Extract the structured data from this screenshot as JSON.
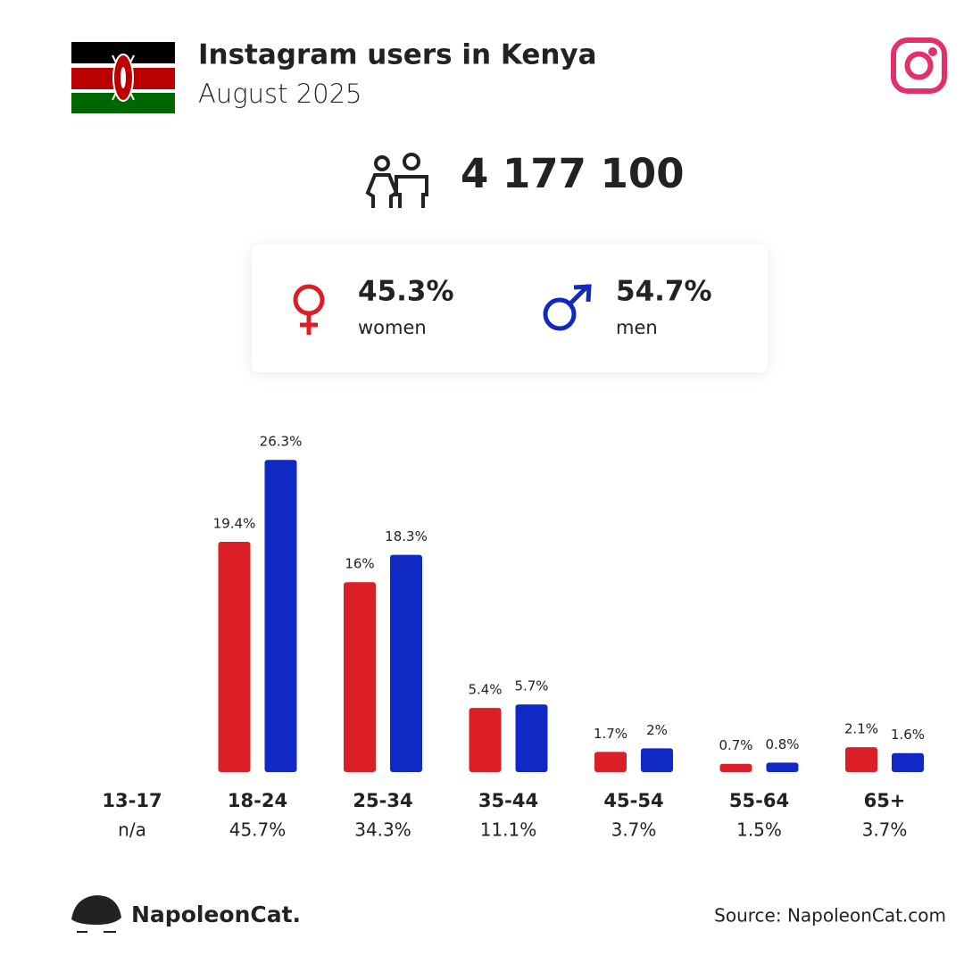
{
  "header": {
    "title": "Instagram users in Kenya",
    "subtitle": "August 2025"
  },
  "total": {
    "value": 4177100,
    "label": "4 177 100"
  },
  "gender": {
    "women": {
      "value": 45.3,
      "value_label": "45.3%",
      "name": "women",
      "color": "#dc1f26"
    },
    "men": {
      "value": 54.7,
      "value_label": "54.7%",
      "name": "men",
      "color": "#1029c4"
    }
  },
  "chart_data": {
    "type": "bar",
    "categories": [
      "13-17",
      "18-24",
      "25-34",
      "35-44",
      "45-54",
      "55-64",
      "65+"
    ],
    "series": [
      {
        "name": "women",
        "color": "#dc1f26",
        "values": [
          null,
          19.4,
          16,
          5.4,
          1.7,
          0.7,
          2.1
        ],
        "value_labels": [
          null,
          "19.4%",
          "16%",
          "5.4%",
          "1.7%",
          "0.7%",
          "2.1%"
        ]
      },
      {
        "name": "men",
        "color": "#1029c4",
        "values": [
          null,
          26.3,
          18.3,
          5.7,
          2,
          0.8,
          1.6
        ],
        "value_labels": [
          null,
          "26.3%",
          "18.3%",
          "5.7%",
          "2%",
          "0.8%",
          "1.6%"
        ]
      }
    ],
    "totals": {
      "values": [
        null,
        45.7,
        34.3,
        11.1,
        3.7,
        1.5,
        3.7
      ],
      "value_labels": [
        "n/a",
        "45.7%",
        "34.3%",
        "11.1%",
        "3.7%",
        "1.5%",
        "3.7%"
      ]
    }
  },
  "footer": {
    "brand": "NapoleonCat.",
    "source": "Source: NapoleonCat.com"
  }
}
